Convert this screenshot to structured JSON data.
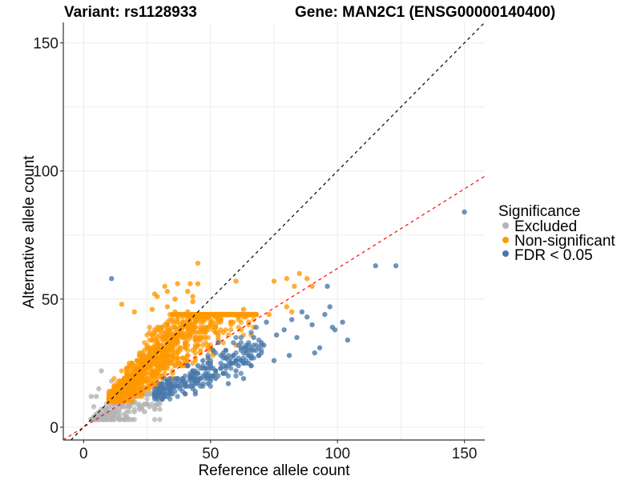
{
  "chart_data": {
    "type": "scatter",
    "title_left": "Variant: rs1128933",
    "title_right": "Gene: MAN2C1 (ENSG00000140400)",
    "xlabel": "Reference allele count",
    "ylabel": "Alternative allele count",
    "xlim": [
      -8,
      158
    ],
    "ylim": [
      -5,
      158
    ],
    "x_ticks": [
      0,
      50,
      100,
      150
    ],
    "y_ticks": [
      0,
      50,
      100,
      150
    ],
    "x_tick_labels": [
      "0",
      "50",
      "100",
      "150"
    ],
    "y_tick_labels": [
      "0",
      "50",
      "100",
      "150"
    ],
    "x_minor_gridlines": [
      25,
      75,
      125
    ],
    "y_minor_gridlines": [
      25,
      75,
      125
    ],
    "grid": true,
    "legend": {
      "title": "Significance",
      "position": "right",
      "entries": [
        {
          "label": "Excluded",
          "color": "#b3b3b3"
        },
        {
          "label": "Non-significant",
          "color": "#ff9900"
        },
        {
          "label": "FDR < 0.05",
          "color": "#4a78aa"
        }
      ]
    },
    "reference_lines": [
      {
        "name": "identity",
        "slope": 1.0,
        "intercept": 0,
        "color": "#000000",
        "style": "dashed"
      },
      {
        "name": "fit",
        "slope": 0.62,
        "intercept": 0,
        "color": "#ff0000",
        "style": "dashed"
      }
    ],
    "series": [
      {
        "name": "Excluded",
        "color": "#b3b3b3",
        "points": [
          [
            4,
            8
          ],
          [
            5,
            12
          ],
          [
            6,
            15
          ],
          [
            8,
            7
          ],
          [
            9,
            4
          ],
          [
            10,
            10
          ],
          [
            12,
            6
          ],
          [
            14,
            3
          ],
          [
            16,
            5
          ],
          [
            18,
            8
          ],
          [
            20,
            6
          ],
          [
            22,
            7
          ],
          [
            26,
            8
          ],
          [
            28,
            7
          ],
          [
            7,
            22
          ],
          [
            3,
            12
          ],
          [
            5,
            5
          ],
          [
            11,
            18
          ],
          [
            13,
            14
          ],
          [
            15,
            9
          ],
          [
            17,
            4
          ],
          [
            24,
            6
          ],
          [
            30,
            7
          ]
        ],
        "cloud": {
          "count": 220,
          "x_range": [
            3,
            30
          ],
          "ratio_center": 0.55,
          "ratio_spread": 0.5,
          "y_min": 3,
          "y_max": 13
        }
      },
      {
        "name": "Non-significant",
        "color": "#ff9900",
        "points": [
          [
            45,
            64
          ],
          [
            37,
            56
          ],
          [
            42,
            56
          ],
          [
            45,
            56
          ],
          [
            32,
            55
          ],
          [
            41,
            53
          ],
          [
            43,
            51
          ],
          [
            33,
            53
          ],
          [
            28,
            52
          ],
          [
            29,
            51
          ],
          [
            36,
            50
          ],
          [
            43,
            49
          ],
          [
            33,
            47
          ],
          [
            20,
            45
          ],
          [
            15,
            48
          ],
          [
            27,
            46
          ],
          [
            36,
            45
          ],
          [
            41,
            45
          ],
          [
            50,
            44
          ],
          [
            47,
            42
          ],
          [
            54,
            42
          ],
          [
            58,
            41
          ],
          [
            62,
            38
          ],
          [
            67,
            39
          ],
          [
            75,
            57
          ],
          [
            80,
            58
          ],
          [
            85,
            60
          ],
          [
            88,
            58
          ],
          [
            83,
            55
          ],
          [
            60,
            57
          ],
          [
            63,
            46
          ],
          [
            73,
            44
          ],
          [
            80,
            47
          ],
          [
            82,
            45
          ],
          [
            90,
            55
          ]
        ],
        "cloud": {
          "count": 1400,
          "x_range": [
            10,
            68
          ],
          "ratio_center": 0.95,
          "ratio_spread": 0.38,
          "y_min": 10,
          "y_max": 44
        }
      },
      {
        "name": "FDR < 0.05",
        "color": "#4a78aa",
        "points": [
          [
            11,
            58
          ],
          [
            150,
            84
          ],
          [
            115,
            63
          ],
          [
            123,
            63
          ],
          [
            96,
            55
          ],
          [
            104,
            34
          ],
          [
            99,
            38
          ],
          [
            95,
            44
          ],
          [
            102,
            41
          ],
          [
            98,
            39
          ],
          [
            90,
            40
          ],
          [
            88,
            43
          ],
          [
            86,
            45
          ],
          [
            82,
            42
          ],
          [
            79,
            38
          ],
          [
            76,
            36
          ],
          [
            72,
            41
          ],
          [
            71,
            32
          ],
          [
            67,
            35
          ],
          [
            70,
            33
          ],
          [
            64,
            31
          ],
          [
            66,
            28
          ],
          [
            62,
            26
          ],
          [
            60,
            22
          ],
          [
            58,
            25
          ],
          [
            61,
            24
          ],
          [
            56,
            30
          ],
          [
            53,
            33
          ],
          [
            51,
            30
          ],
          [
            47,
            26
          ],
          [
            45,
            24
          ],
          [
            55,
            21
          ],
          [
            52,
            19
          ],
          [
            49,
            17
          ],
          [
            44,
            13
          ],
          [
            38,
            16
          ],
          [
            35,
            13
          ],
          [
            31,
            15
          ],
          [
            84,
            35
          ],
          [
            91,
            29
          ],
          [
            93,
            31
          ],
          [
            97,
            47
          ],
          [
            81,
            28
          ],
          [
            75,
            26
          ],
          [
            69,
            28
          ],
          [
            63,
            19
          ],
          [
            57,
            17
          ]
        ],
        "cloud": {
          "count": 260,
          "x_range": [
            28,
            70
          ],
          "ratio_center": 0.45,
          "ratio_spread": 0.12,
          "y_min": 10,
          "y_max": 40
        }
      }
    ]
  }
}
